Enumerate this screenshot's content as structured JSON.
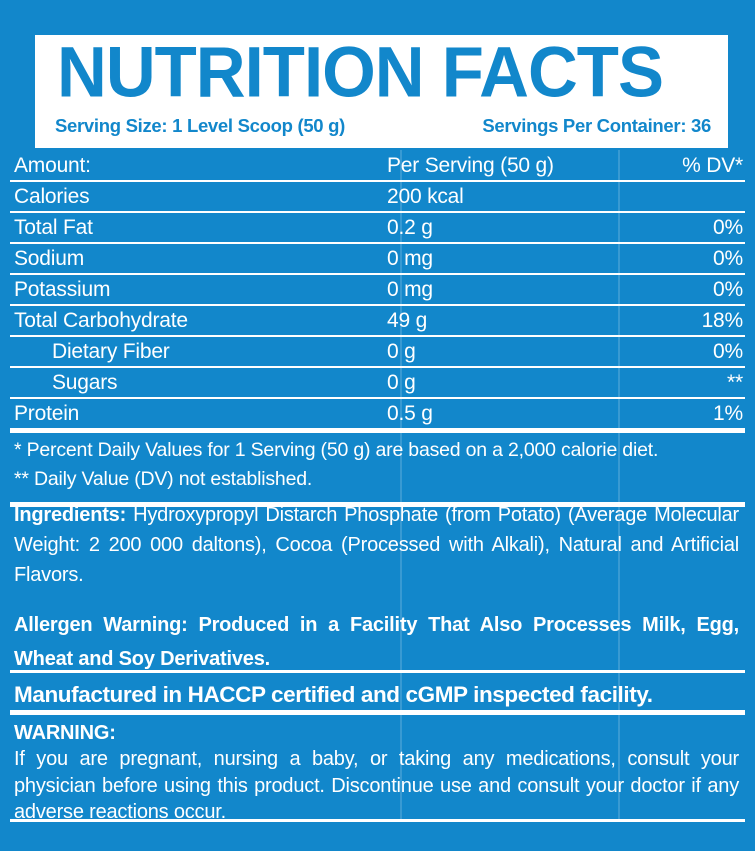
{
  "colors": {
    "background_blue": "#1287cb",
    "card_white": "#ffffff"
  },
  "header": {
    "title": "NUTRITION FACTS",
    "serving_size": "Serving Size: 1 Level Scoop (50 g)",
    "servings_per_container": "Servings Per Container: 36"
  },
  "table": {
    "header": {
      "label": "Amount:",
      "value": "Per Serving (50 g)",
      "dv": "% DV*"
    },
    "rows": [
      {
        "label": "Calories",
        "value": "200 kcal",
        "dv": ""
      },
      {
        "label": "Total Fat",
        "value": "0.2 g",
        "dv": "0%"
      },
      {
        "label": "Sodium",
        "value": "0 mg",
        "dv": "0%"
      },
      {
        "label": "Potassium",
        "value": "0 mg",
        "dv": "0%"
      },
      {
        "label": "Total Carbohydrate",
        "value": "49 g",
        "dv": "18%"
      },
      {
        "label": "Dietary Fiber",
        "value": "0 g",
        "dv": "0%"
      },
      {
        "label": "Sugars",
        "value": "0 g",
        "dv": "**"
      },
      {
        "label": "Protein",
        "value": "0.5 g",
        "dv": "1%"
      }
    ]
  },
  "footnotes": {
    "line1": "* Percent Daily Values for 1 Serving (50 g) are based on a 2,000 calorie diet.",
    "line2": "** Daily Value (DV) not established."
  },
  "ingredients": {
    "label": "Ingredients:",
    "text": " Hydroxypropyl Distarch Phosphate (from Potato) (Average Molecular Weight: 2 200 000 daltons), Cocoa (Processed with Alkali), Natural and Artificial Flavors."
  },
  "allergen": {
    "label": "Allergen Warning:",
    "text": " Produced in a Facility That Also Processes Milk, Egg, Wheat and Soy Derivatives."
  },
  "manufactured": "Manufactured in HACCP certified and cGMP inspected facility.",
  "warning": {
    "heading": "WARNING:",
    "text": "If you are pregnant, nursing a baby, or taking any medications, consult your physician before using this product. Discontinue use and consult your doctor if any adverse reactions occur."
  }
}
